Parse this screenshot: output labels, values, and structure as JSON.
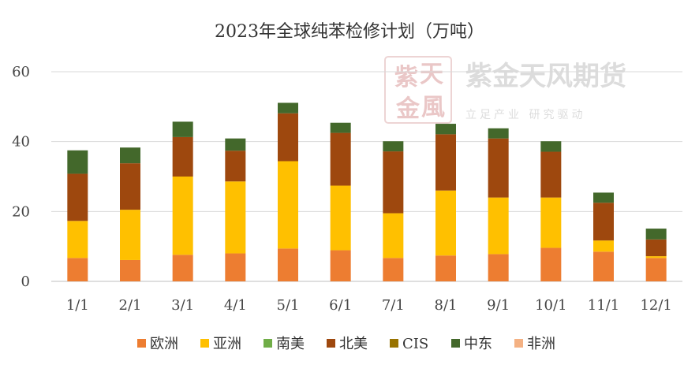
{
  "chart_data": {
    "type": "bar",
    "stacked": true,
    "title": "2023年全球纯苯检修计划（万吨）",
    "categories": [
      "1/1",
      "2/1",
      "3/1",
      "4/1",
      "5/1",
      "6/1",
      "7/1",
      "8/1",
      "9/1",
      "10/1",
      "11/1",
      "12/1"
    ],
    "ylim": [
      0,
      60
    ],
    "yticks": [
      0,
      20,
      40,
      60
    ],
    "grid": true,
    "legend_position": "bottom",
    "series": [
      {
        "name": "欧洲",
        "color": "#ED7D31",
        "values": [
          6.7,
          6.1,
          7.6,
          8.0,
          9.4,
          8.9,
          6.7,
          7.4,
          7.8,
          9.6,
          8.5,
          6.7
        ]
      },
      {
        "name": "亚洲",
        "color": "#FFC000",
        "values": [
          10.6,
          14.4,
          22.4,
          20.6,
          25.0,
          18.5,
          12.8,
          18.6,
          16.2,
          14.4,
          3.2,
          0.5
        ]
      },
      {
        "name": "南美",
        "color": "#70AD47",
        "values": [
          0,
          0,
          0,
          0,
          0,
          0,
          0,
          0,
          0,
          0,
          0,
          0
        ]
      },
      {
        "name": "北美",
        "color": "#9E480E",
        "values": [
          13.5,
          13.3,
          11.3,
          8.8,
          13.7,
          15.1,
          17.7,
          16.1,
          16.9,
          13.1,
          10.8,
          4.8
        ]
      },
      {
        "name": "CIS",
        "color": "#997300",
        "values": [
          0,
          0,
          0,
          0,
          0,
          0,
          0,
          0,
          0,
          0,
          0,
          0
        ]
      },
      {
        "name": "中东",
        "color": "#43682B",
        "values": [
          6.7,
          4.5,
          4.4,
          3.5,
          3.0,
          2.9,
          2.9,
          3.0,
          2.9,
          3.0,
          2.9,
          3.1
        ]
      },
      {
        "name": "非洲",
        "color": "#F4B183",
        "values": [
          0,
          0,
          0,
          0,
          0,
          0,
          0,
          0,
          0,
          0,
          0,
          0
        ]
      }
    ]
  },
  "watermark": {
    "brand": "紫金天风期货",
    "slogan": "立足产业  研究驱动",
    "seal_chars": [
      "紫",
      "天",
      "金",
      "風"
    ]
  }
}
